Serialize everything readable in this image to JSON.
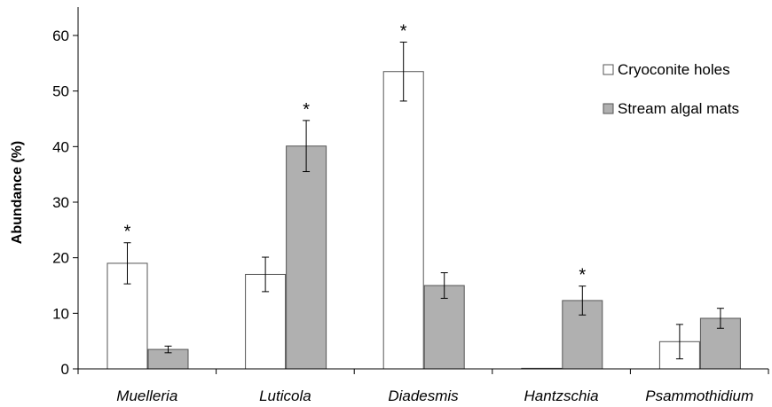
{
  "chart_data": {
    "type": "bar",
    "categories": [
      "Muelleria",
      "Luticola",
      "Diadesmis",
      "Hantzschia",
      "Psammothidium"
    ],
    "series": [
      {
        "name": "Cryoconite holes",
        "values": [
          19.0,
          17.0,
          53.5,
          0.1,
          4.9
        ],
        "errors": [
          3.7,
          3.1,
          5.3,
          0.0,
          3.1
        ],
        "significant": [
          true,
          false,
          true,
          false,
          false
        ],
        "color": "#ffffff"
      },
      {
        "name": "Stream algal mats",
        "values": [
          3.5,
          40.1,
          15.0,
          12.3,
          9.1
        ],
        "errors": [
          0.6,
          4.6,
          2.3,
          2.6,
          1.8
        ],
        "significant": [
          false,
          true,
          false,
          true,
          false
        ],
        "color": "#b0b0b0"
      }
    ],
    "ylabel": "Abundance (%)",
    "xlabel": "",
    "ylim": [
      0,
      65
    ],
    "yticks": [
      0,
      10,
      20,
      30,
      40,
      50,
      60
    ],
    "significance_marker": "*",
    "legend_position": "top-right",
    "grid": false
  }
}
